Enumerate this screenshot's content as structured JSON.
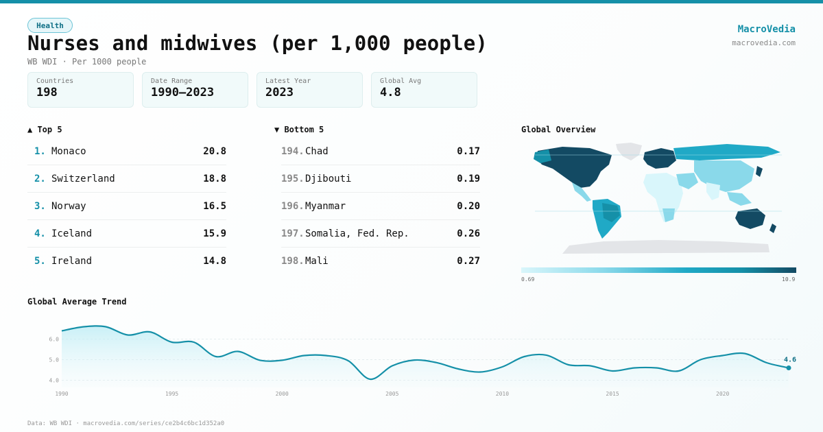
{
  "header": {
    "tag": "Health",
    "title": "Nurses and midwives (per 1,000 people)",
    "subtitle": "WB WDI · Per 1000 people",
    "brand": "MacroVedia",
    "brand_url": "macrovedia.com"
  },
  "stats": [
    {
      "label": "Countries",
      "value": "198"
    },
    {
      "label": "Date Range",
      "value": "1990–2023"
    },
    {
      "label": "Latest Year",
      "value": "2023"
    },
    {
      "label": "Global Avg",
      "value": "4.8"
    }
  ],
  "top5": {
    "heading": "▲ Top 5",
    "items": [
      {
        "rank": "1.",
        "name": "Monaco",
        "value": "20.8"
      },
      {
        "rank": "2.",
        "name": "Switzerland",
        "value": "18.8"
      },
      {
        "rank": "3.",
        "name": "Norway",
        "value": "16.5"
      },
      {
        "rank": "4.",
        "name": "Iceland",
        "value": "15.9"
      },
      {
        "rank": "5.",
        "name": "Ireland",
        "value": "14.8"
      }
    ]
  },
  "bottom5": {
    "heading": "▼ Bottom 5",
    "items": [
      {
        "rank": "194.",
        "name": "Chad",
        "value": "0.17"
      },
      {
        "rank": "195.",
        "name": "Djibouti",
        "value": "0.19"
      },
      {
        "rank": "196.",
        "name": "Myanmar",
        "value": "0.20"
      },
      {
        "rank": "197.",
        "name": "Somalia, Fed. Rep.",
        "value": "0.26"
      },
      {
        "rank": "198.",
        "name": "Mali",
        "value": "0.27"
      }
    ]
  },
  "map": {
    "heading": "Global Overview",
    "legend_min": "0.69",
    "legend_max": "10.9",
    "colors": [
      "#d9f6fb",
      "#8ad9ea",
      "#20a9c6",
      "#1590a8",
      "#134a63"
    ],
    "no_data_color": "#e3e5e8"
  },
  "trend": {
    "heading": "Global Average Trend"
  },
  "footer": "Data: WB WDI · macrovedia.com/series/ce2b4c6bc1d352a0",
  "chart_data": {
    "type": "line",
    "title": "Global Average Trend",
    "x": [
      1990,
      1991,
      1992,
      1993,
      1994,
      1995,
      1996,
      1997,
      1998,
      1999,
      2000,
      2001,
      2002,
      2003,
      2004,
      2005,
      2006,
      2007,
      2008,
      2009,
      2010,
      2011,
      2012,
      2013,
      2014,
      2015,
      2016,
      2017,
      2018,
      2019,
      2020,
      2021,
      2022,
      2023
    ],
    "series": [
      {
        "values": [
          6.4,
          6.6,
          6.6,
          6.2,
          6.35,
          5.85,
          5.85,
          5.15,
          5.4,
          4.97,
          4.97,
          5.2,
          5.2,
          4.95,
          4.05,
          4.7,
          4.98,
          4.86,
          4.55,
          4.4,
          4.65,
          5.15,
          5.22,
          4.75,
          4.7,
          4.45,
          4.6,
          4.6,
          4.45,
          5.0,
          5.2,
          5.3,
          4.85,
          4.6
        ]
      }
    ],
    "yticks": [
      4.0,
      5.0,
      6.0
    ],
    "xticks": [
      1990,
      1995,
      2000,
      2005,
      2010,
      2015,
      2020
    ],
    "ylim": [
      3.65,
      7.15
    ],
    "last_label": "4.6",
    "line_color": "#1590a8",
    "grid": true
  }
}
